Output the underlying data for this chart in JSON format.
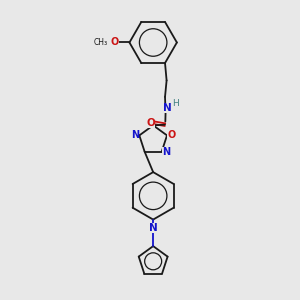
{
  "bg_color": "#e8e8e8",
  "bond_color": "#1a1a1a",
  "nitrogen_color": "#1414cc",
  "oxygen_color": "#cc1414",
  "lw": 1.3,
  "fs": 6.5,
  "xlim": [
    1.0,
    9.0
  ],
  "ylim": [
    0.3,
    9.7
  ],
  "b1cx": 5.1,
  "b1cy": 8.4,
  "b1r": 0.75,
  "b2cx": 5.1,
  "b2cy": 3.55,
  "b2r": 0.75,
  "pycx": 5.1,
  "pycy": 1.48,
  "pyr": 0.48,
  "oxcx": 5.1,
  "oxcy": 5.32,
  "oxr": 0.46
}
